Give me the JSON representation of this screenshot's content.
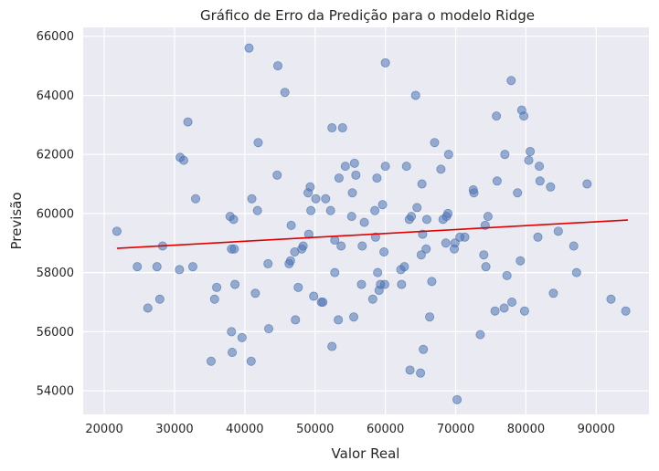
{
  "chart_data": {
    "type": "scatter",
    "title": "Gráfico de Erro da Predição para o modelo Ridge",
    "xlabel": "Valor Real",
    "ylabel": "Previsão",
    "xlim": [
      17000,
      97500
    ],
    "ylim": [
      53200,
      66300
    ],
    "x_ticks": [
      20000,
      30000,
      40000,
      50000,
      60000,
      70000,
      80000,
      90000
    ],
    "y_ticks": [
      54000,
      56000,
      58000,
      60000,
      62000,
      64000,
      66000
    ],
    "grid": true,
    "colors": {
      "background": "#eaeaf2",
      "grid": "#ffffff",
      "points": "#4c72b0",
      "fit_line": "#e00000"
    },
    "fit_line": {
      "x": [
        21800,
        94500
      ],
      "y": [
        58820,
        59780
      ]
    },
    "points": [
      [
        21800,
        59400
      ],
      [
        24700,
        58200
      ],
      [
        26200,
        56800
      ],
      [
        27500,
        58200
      ],
      [
        27900,
        57100
      ],
      [
        28300,
        58900
      ],
      [
        30700,
        58100
      ],
      [
        30800,
        61900
      ],
      [
        31300,
        61800
      ],
      [
        31900,
        63100
      ],
      [
        32600,
        58200
      ],
      [
        33000,
        60500
      ],
      [
        35200,
        55000
      ],
      [
        35700,
        57100
      ],
      [
        36000,
        57500
      ],
      [
        37900,
        59900
      ],
      [
        38100,
        56000
      ],
      [
        38100,
        58800
      ],
      [
        38200,
        55300
      ],
      [
        38400,
        59800
      ],
      [
        38500,
        58800
      ],
      [
        38600,
        57600
      ],
      [
        39600,
        55800
      ],
      [
        40600,
        65600
      ],
      [
        40900,
        55000
      ],
      [
        41000,
        60500
      ],
      [
        41500,
        57300
      ],
      [
        41800,
        60100
      ],
      [
        41900,
        62400
      ],
      [
        43300,
        58300
      ],
      [
        43400,
        56100
      ],
      [
        44600,
        61300
      ],
      [
        44700,
        65000
      ],
      [
        45700,
        64100
      ],
      [
        46300,
        58300
      ],
      [
        46500,
        58400
      ],
      [
        46600,
        59600
      ],
      [
        47100,
        58700
      ],
      [
        47200,
        56400
      ],
      [
        47600,
        57500
      ],
      [
        48100,
        58800
      ],
      [
        48300,
        58900
      ],
      [
        49000,
        60700
      ],
      [
        49100,
        59300
      ],
      [
        49300,
        60900
      ],
      [
        49400,
        60100
      ],
      [
        49800,
        57200
      ],
      [
        50100,
        60500
      ],
      [
        50900,
        57000
      ],
      [
        51100,
        57000
      ],
      [
        51500,
        60500
      ],
      [
        52200,
        60100
      ],
      [
        52400,
        55500
      ],
      [
        52400,
        62900
      ],
      [
        52800,
        58000
      ],
      [
        52800,
        59100
      ],
      [
        53300,
        56400
      ],
      [
        53400,
        61200
      ],
      [
        53700,
        58900
      ],
      [
        53900,
        62900
      ],
      [
        54300,
        61600
      ],
      [
        55200,
        59900
      ],
      [
        55300,
        60700
      ],
      [
        55500,
        56500
      ],
      [
        55600,
        61700
      ],
      [
        55800,
        61300
      ],
      [
        56600,
        57600
      ],
      [
        56700,
        58900
      ],
      [
        57000,
        59700
      ],
      [
        58200,
        57100
      ],
      [
        58500,
        60100
      ],
      [
        58600,
        59200
      ],
      [
        58800,
        61200
      ],
      [
        58900,
        58000
      ],
      [
        59100,
        57400
      ],
      [
        59300,
        57600
      ],
      [
        59600,
        60300
      ],
      [
        59800,
        58700
      ],
      [
        59900,
        57600
      ],
      [
        60000,
        65100
      ],
      [
        60000,
        61600
      ],
      [
        62200,
        58100
      ],
      [
        62300,
        57600
      ],
      [
        62700,
        58200
      ],
      [
        63000,
        61600
      ],
      [
        63400,
        59800
      ],
      [
        63500,
        54700
      ],
      [
        63700,
        59900
      ],
      [
        64300,
        64000
      ],
      [
        64500,
        60200
      ],
      [
        65000,
        54600
      ],
      [
        65100,
        58600
      ],
      [
        65200,
        61000
      ],
      [
        65300,
        59300
      ],
      [
        65400,
        55400
      ],
      [
        65800,
        58800
      ],
      [
        65900,
        59800
      ],
      [
        66300,
        56500
      ],
      [
        66600,
        57700
      ],
      [
        67000,
        62400
      ],
      [
        67900,
        61500
      ],
      [
        68200,
        59800
      ],
      [
        68600,
        59000
      ],
      [
        68700,
        59900
      ],
      [
        68900,
        60000
      ],
      [
        69000,
        62000
      ],
      [
        69800,
        58800
      ],
      [
        69900,
        59000
      ],
      [
        70200,
        53700
      ],
      [
        70600,
        59200
      ],
      [
        71300,
        59200
      ],
      [
        72500,
        60800
      ],
      [
        72600,
        60700
      ],
      [
        73500,
        55900
      ],
      [
        74000,
        58600
      ],
      [
        74200,
        59600
      ],
      [
        74300,
        58200
      ],
      [
        74600,
        59900
      ],
      [
        75600,
        56700
      ],
      [
        75800,
        63300
      ],
      [
        75900,
        61100
      ],
      [
        76900,
        56800
      ],
      [
        77000,
        62000
      ],
      [
        77300,
        57900
      ],
      [
        77900,
        64500
      ],
      [
        78000,
        57000
      ],
      [
        78800,
        60700
      ],
      [
        79200,
        58400
      ],
      [
        79400,
        63500
      ],
      [
        79700,
        63300
      ],
      [
        79800,
        56700
      ],
      [
        80400,
        61800
      ],
      [
        80600,
        62100
      ],
      [
        81700,
        59200
      ],
      [
        81900,
        61600
      ],
      [
        82000,
        61100
      ],
      [
        83500,
        60900
      ],
      [
        83900,
        57300
      ],
      [
        84600,
        59400
      ],
      [
        86800,
        58900
      ],
      [
        87200,
        58000
      ],
      [
        88700,
        61000
      ],
      [
        92100,
        57100
      ],
      [
        94200,
        56700
      ]
    ]
  }
}
